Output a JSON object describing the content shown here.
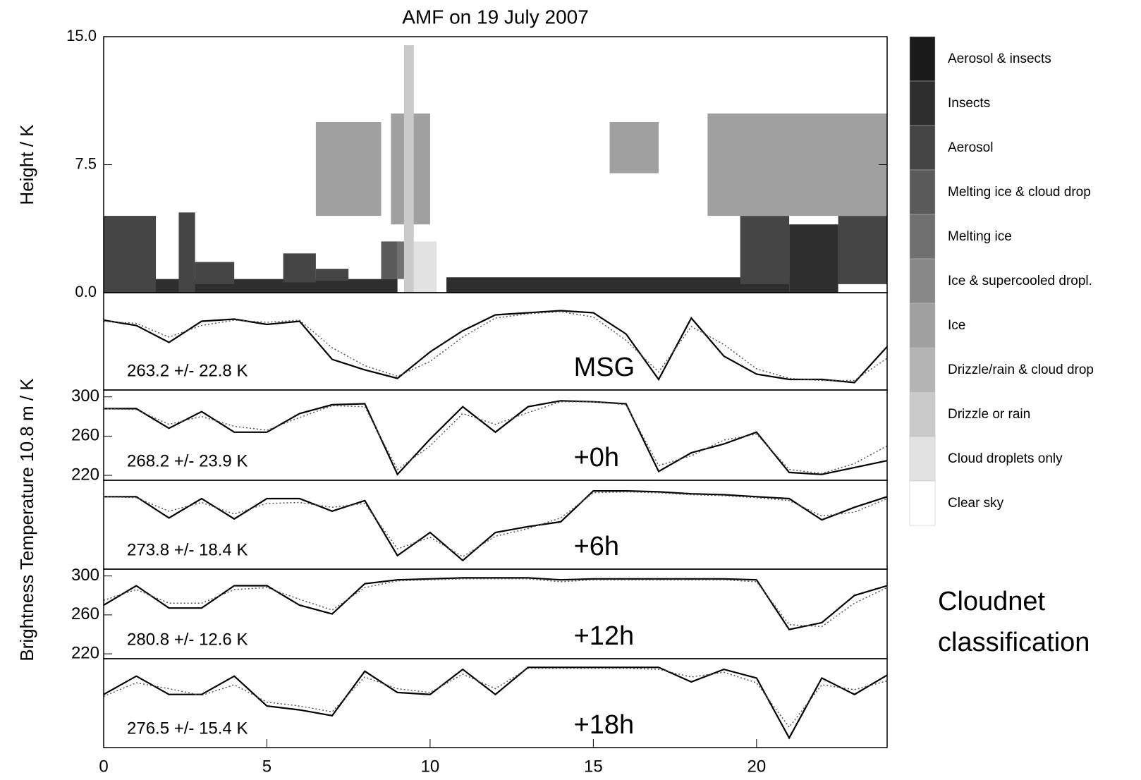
{
  "chart_data": [
    {
      "type": "classification",
      "title": "AMF on 19 July 2007",
      "ylabel": "Height / K",
      "xlim": [
        0,
        24
      ],
      "ylim": [
        0,
        15
      ],
      "yticks": [
        {
          "value": 0,
          "label": "0.0"
        },
        {
          "value": 7.5,
          "label": "7.5"
        },
        {
          "value": 15,
          "label": "15.0"
        }
      ],
      "annotation": [
        "Cloudnet",
        "classification"
      ],
      "classes": [
        {
          "name": "Aerosol & insects",
          "color": "#1a1a1a",
          "regions": []
        },
        {
          "name": "Insects",
          "color": "#2e2e2e",
          "regions": [
            [
              1.5,
              9.0,
              0,
              0.8
            ],
            [
              10.5,
              21.0,
              0,
              0.9
            ],
            [
              21.0,
              22.5,
              0,
              4.0
            ]
          ]
        },
        {
          "name": "Aerosol",
          "color": "#454545",
          "regions": [
            [
              0,
              1.6,
              0,
              4.5
            ],
            [
              2.3,
              2.8,
              0,
              4.7
            ],
            [
              2.8,
              4.0,
              0.5,
              1.8
            ],
            [
              5.5,
              6.5,
              0.6,
              2.3
            ],
            [
              6.5,
              7.5,
              0.7,
              1.4
            ],
            [
              19.5,
              21.0,
              0.5,
              4.5
            ],
            [
              22.5,
              24,
              0.5,
              4.5
            ]
          ]
        },
        {
          "name": "Melting ice & cloud drop",
          "color": "#5a5a5a",
          "regions": [
            [
              8.5,
              9.0,
              0.8,
              3.0
            ]
          ]
        },
        {
          "name": "Melting ice",
          "color": "#707070",
          "regions": [
            [
              9.0,
              9.4,
              0.8,
              3.0
            ]
          ]
        },
        {
          "name": "Ice & supercooled dropl.",
          "color": "#888888",
          "regions": []
        },
        {
          "name": "Ice",
          "color": "#a0a0a0",
          "regions": [
            [
              6.5,
              8.5,
              4.5,
              10.0
            ],
            [
              8.8,
              10.0,
              4.0,
              10.5
            ],
            [
              15.5,
              17.0,
              7.0,
              10.0
            ],
            [
              18.5,
              24,
              4.5,
              10.5
            ]
          ]
        },
        {
          "name": "Drizzle/rain & cloud drop",
          "color": "#b4b4b4",
          "regions": []
        },
        {
          "name": "Drizzle or rain",
          "color": "#cacaca",
          "regions": [
            [
              9.2,
              9.5,
              0,
              14.5
            ]
          ]
        },
        {
          "name": "Cloud droplets only",
          "color": "#e2e2e2",
          "regions": [
            [
              9.5,
              10.2,
              0,
              3.0
            ]
          ]
        },
        {
          "name": "Clear sky",
          "color": "#ffffff",
          "regions": []
        }
      ]
    },
    {
      "type": "line",
      "label": "MSG",
      "stat": "263.2 +/-  22.8 K",
      "ylabel": "Brightness Temperature 10.8  m / K",
      "xlim": [
        0,
        24
      ],
      "ylim": [
        215,
        307
      ],
      "x": [
        0,
        1,
        2,
        3,
        4,
        5,
        6,
        7,
        8,
        9,
        10,
        11,
        12,
        13,
        14,
        15,
        16,
        17,
        18,
        19,
        20,
        21,
        22,
        23,
        24
      ],
      "series": [
        {
          "style": "solid",
          "color": "#000000",
          "values": [
            281,
            276,
            260,
            280,
            282,
            277,
            280,
            244,
            234,
            226,
            251,
            271,
            286,
            288,
            290,
            288,
            268,
            225,
            283,
            247,
            230,
            225,
            225,
            222,
            256
          ]
        },
        {
          "style": "dotted",
          "color": "#555555",
          "values": [
            280,
            278,
            265,
            276,
            281,
            279,
            281,
            255,
            238,
            228,
            242,
            265,
            283,
            287,
            289,
            284,
            262,
            232,
            275,
            258,
            235,
            226,
            224,
            224,
            245
          ]
        }
      ]
    },
    {
      "type": "line",
      "label": "+0h",
      "stat": "268.2 +/-  23.9 K",
      "xlim": [
        0,
        24
      ],
      "ylim": [
        215,
        307
      ],
      "yticks": [
        220,
        260,
        300
      ],
      "x": [
        0,
        1,
        2,
        3,
        4,
        5,
        6,
        7,
        8,
        9,
        10,
        11,
        12,
        13,
        14,
        15,
        16,
        17,
        18,
        19,
        20,
        21,
        22,
        23,
        24
      ],
      "series": [
        {
          "style": "solid",
          "color": "#000000",
          "values": [
            288,
            288,
            268,
            285,
            264,
            264,
            283,
            292,
            293,
            221,
            257,
            290,
            264,
            290,
            296,
            295,
            293,
            224,
            243,
            252,
            264,
            223,
            221,
            228,
            235
          ]
        },
        {
          "style": "dotted",
          "color": "#555555",
          "values": [
            288,
            287,
            272,
            280,
            270,
            266,
            279,
            291,
            290,
            226,
            250,
            283,
            272,
            284,
            295,
            295,
            292,
            230,
            240,
            256,
            262,
            226,
            222,
            232,
            250
          ]
        }
      ]
    },
    {
      "type": "line",
      "label": "+6h",
      "stat": "273.8 +/-  18.4 K",
      "xlim": [
        0,
        24
      ],
      "ylim": [
        215,
        307
      ],
      "x": [
        0,
        1,
        2,
        3,
        4,
        5,
        6,
        7,
        8,
        9,
        10,
        11,
        12,
        13,
        14,
        15,
        16,
        17,
        18,
        19,
        20,
        21,
        22,
        23,
        24
      ],
      "series": [
        {
          "style": "solid",
          "color": "#000000",
          "values": [
            290,
            290,
            268,
            288,
            267,
            288,
            288,
            275,
            286,
            229,
            253,
            224,
            253,
            259,
            264,
            296,
            296,
            295,
            293,
            292,
            290,
            288,
            266,
            279,
            290
          ]
        },
        {
          "style": "dotted",
          "color": "#555555",
          "values": [
            290,
            289,
            275,
            284,
            272,
            283,
            284,
            279,
            283,
            236,
            248,
            228,
            249,
            257,
            268,
            294,
            295,
            294,
            292,
            291,
            289,
            286,
            270,
            274,
            288
          ]
        }
      ]
    },
    {
      "type": "line",
      "label": "+12h",
      "stat": "280.8 +/-  12.6 K",
      "xlim": [
        0,
        24
      ],
      "ylim": [
        215,
        307
      ],
      "yticks": [
        220,
        260,
        300
      ],
      "x": [
        0,
        1,
        2,
        3,
        4,
        5,
        6,
        7,
        8,
        9,
        10,
        11,
        12,
        13,
        14,
        15,
        16,
        17,
        18,
        19,
        20,
        21,
        22,
        23,
        24
      ],
      "series": [
        {
          "style": "solid",
          "color": "#000000",
          "values": [
            270,
            290,
            267,
            267,
            290,
            290,
            270,
            261,
            292,
            296,
            297,
            298,
            298,
            298,
            296,
            297,
            297,
            297,
            297,
            297,
            296,
            245,
            252,
            280,
            290
          ]
        },
        {
          "style": "dotted",
          "color": "#555555",
          "values": [
            275,
            286,
            272,
            272,
            286,
            288,
            276,
            265,
            288,
            295,
            296,
            297,
            297,
            297,
            294,
            296,
            296,
            296,
            296,
            296,
            294,
            250,
            248,
            272,
            288
          ]
        }
      ]
    },
    {
      "type": "line",
      "label": "+18h",
      "stat": "276.5 +/-  15.4 K",
      "xlim": [
        0,
        24
      ],
      "ylim": [
        215,
        307
      ],
      "xticks": [
        0,
        5,
        10,
        15,
        20
      ],
      "x": [
        0,
        1,
        2,
        3,
        4,
        5,
        6,
        7,
        8,
        9,
        10,
        11,
        12,
        13,
        14,
        15,
        16,
        17,
        18,
        19,
        20,
        21,
        22,
        23,
        24
      ],
      "series": [
        {
          "style": "solid",
          "color": "#000000",
          "values": [
            270,
            289,
            270,
            270,
            289,
            258,
            254,
            248,
            294,
            272,
            270,
            296,
            270,
            298,
            298,
            298,
            298,
            298,
            283,
            296,
            287,
            225,
            287,
            270,
            290
          ]
        },
        {
          "style": "dotted",
          "color": "#555555",
          "values": [
            268,
            282,
            276,
            269,
            280,
            262,
            258,
            252,
            288,
            276,
            272,
            291,
            276,
            297,
            297,
            297,
            297,
            296,
            288,
            293,
            282,
            236,
            280,
            275,
            284
          ]
        }
      ]
    }
  ]
}
